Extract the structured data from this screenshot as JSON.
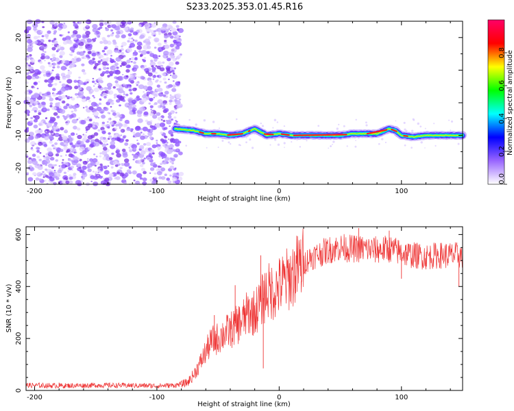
{
  "title": "S233.2025.353.01.45.R16",
  "chart_data": [
    {
      "type": "heatmap",
      "name": "spectrogram",
      "title": "S233.2025.353.01.45.R16",
      "xlabel": "Height of straight line (km)",
      "ylabel": "Frequency (Hz)",
      "xlim": [
        -207,
        150
      ],
      "ylim": [
        -25,
        25
      ],
      "xticks": [
        -200,
        -100,
        0,
        100
      ],
      "xtick_labels": [
        "-200",
        "-100",
        "0",
        "100"
      ],
      "yticks": [
        -20,
        -10,
        0,
        10,
        20
      ],
      "ytick_labels": [
        "-20",
        "-10",
        "0",
        "10",
        "20"
      ],
      "noise_region_x": [
        -207,
        -80
      ],
      "signal_track": {
        "x": [
          -85,
          -70,
          -60,
          -50,
          -40,
          -30,
          -20,
          -10,
          0,
          10,
          20,
          30,
          40,
          50,
          60,
          70,
          80,
          90,
          95,
          100,
          110,
          120,
          130,
          140,
          150
        ],
        "frequency_hz": [
          -8,
          -8.5,
          -9.5,
          -9.5,
          -10,
          -9.5,
          -8,
          -10,
          -9.5,
          -10,
          -10,
          -10,
          -10,
          -10,
          -9.5,
          -9.5,
          -9.5,
          -8,
          -8.5,
          -10,
          -10.5,
          -10,
          -10,
          -10,
          -10
        ]
      },
      "colorbar": {
        "label": "Normalized spectral amplitude",
        "range": [
          0,
          1
        ],
        "ticks": [
          0.0,
          0.2,
          0.4,
          0.6,
          0.8
        ],
        "tick_labels": [
          "0.0",
          "0.2",
          "0.4",
          "0.6",
          "0.8"
        ],
        "colors": [
          "#ffffff",
          "#9966ff",
          "#0000ff",
          "#00ffff",
          "#00ff00",
          "#ffff00",
          "#ff0000",
          "#ff0066"
        ]
      }
    },
    {
      "type": "line",
      "name": "snr",
      "xlabel": "Height of straight line (km)",
      "ylabel": "SNR (10 * v/v)",
      "xlim": [
        -207,
        150
      ],
      "ylim": [
        0,
        630
      ],
      "xticks": [
        -200,
        -100,
        0,
        100
      ],
      "xtick_labels": [
        "-200",
        "-100",
        "0",
        "100"
      ],
      "yticks": [
        0,
        200,
        400,
        600
      ],
      "ytick_labels": [
        "0",
        "200",
        "400",
        "600"
      ],
      "series": [
        {
          "name": "SNR",
          "color": "#ee3333",
          "x": [
            -207,
            -180,
            -150,
            -120,
            -100,
            -85,
            -75,
            -70,
            -65,
            -60,
            -55,
            -50,
            -45,
            -40,
            -35,
            -30,
            -25,
            -20,
            -15,
            -10,
            -5,
            0,
            5,
            10,
            15,
            20,
            25,
            30,
            40,
            50,
            60,
            70,
            80,
            90,
            100,
            110,
            120,
            130,
            140,
            150
          ],
          "values": [
            20,
            18,
            20,
            19,
            18,
            20,
            30,
            60,
            100,
            150,
            190,
            200,
            220,
            230,
            250,
            270,
            300,
            300,
            340,
            380,
            380,
            400,
            420,
            440,
            470,
            490,
            510,
            520,
            540,
            550,
            545,
            545,
            540,
            545,
            530,
            520,
            515,
            520,
            520,
            520
          ],
          "spikes": [
            {
              "x": -180,
              "y": 30
            },
            {
              "x": -128,
              "y": 28
            },
            {
              "x": -53,
              "y": 290
            },
            {
              "x": -36,
              "y": 405
            },
            {
              "x": -27,
              "y": 330
            },
            {
              "x": -15,
              "y": 520
            },
            {
              "x": -13,
              "y": 85
            },
            {
              "x": 65,
              "y": 625
            },
            {
              "x": 90,
              "y": 615
            },
            {
              "x": 100,
              "y": 430
            },
            {
              "x": 147,
              "y": 400
            }
          ]
        }
      ]
    }
  ]
}
